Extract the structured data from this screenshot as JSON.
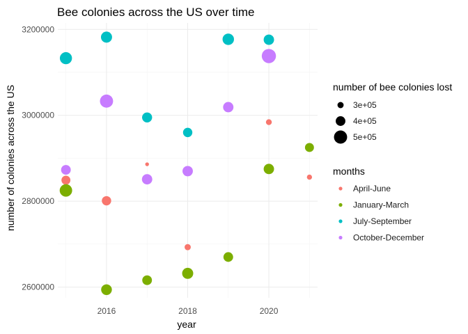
{
  "chart_data": {
    "type": "scatter",
    "title": "Bee colonies across the US over time",
    "xlabel": "year",
    "ylabel": "number of colonies across the US",
    "xlim": [
      2014.8,
      2021.2
    ],
    "ylim": [
      2575000,
      3215000
    ],
    "x_ticks": [
      2016,
      2018,
      2020
    ],
    "y_ticks": [
      2600000,
      2800000,
      3000000,
      3200000
    ],
    "x_tick_labels": [
      "2016",
      "2018",
      "2020"
    ],
    "y_tick_labels": [
      "2600000",
      "2800000",
      "3000000",
      "3200000"
    ],
    "grid": true,
    "legend_position": "right",
    "size_legend": {
      "title": "number of bee colonies lost",
      "values": [
        300000,
        400000,
        500000
      ],
      "labels": [
        "3e+05",
        "4e+05",
        "5e+05"
      ]
    },
    "color_legend": {
      "title": "months"
    },
    "series": [
      {
        "name": "April-June",
        "color": "#F8766D",
        "points": [
          {
            "x": 2015,
            "y": 2849000,
            "lost": 380000
          },
          {
            "x": 2016,
            "y": 2801000,
            "lost": 390000
          },
          {
            "x": 2017,
            "y": 2886000,
            "lost": 230000
          },
          {
            "x": 2018,
            "y": 2693000,
            "lost": 300000
          },
          {
            "x": 2020,
            "y": 2984000,
            "lost": 290000
          },
          {
            "x": 2021,
            "y": 2856000,
            "lost": 270000
          }
        ]
      },
      {
        "name": "January-March",
        "color": "#7CAE00",
        "points": [
          {
            "x": 2015,
            "y": 2825000,
            "lost": 480000
          },
          {
            "x": 2016,
            "y": 2594000,
            "lost": 430000
          },
          {
            "x": 2017,
            "y": 2616000,
            "lost": 400000
          },
          {
            "x": 2018,
            "y": 2632000,
            "lost": 440000
          },
          {
            "x": 2019,
            "y": 2670000,
            "lost": 400000
          },
          {
            "x": 2020,
            "y": 2875000,
            "lost": 420000
          },
          {
            "x": 2021,
            "y": 2925000,
            "lost": 380000
          }
        ]
      },
      {
        "name": "July-September",
        "color": "#00BFC4",
        "points": [
          {
            "x": 2015,
            "y": 3133000,
            "lost": 470000
          },
          {
            "x": 2016,
            "y": 3182000,
            "lost": 440000
          },
          {
            "x": 2017,
            "y": 2995000,
            "lost": 410000
          },
          {
            "x": 2018,
            "y": 2960000,
            "lost": 390000
          },
          {
            "x": 2019,
            "y": 3177000,
            "lost": 450000
          },
          {
            "x": 2020,
            "y": 3176000,
            "lost": 420000
          }
        ]
      },
      {
        "name": "October-December",
        "color": "#C77CFF",
        "points": [
          {
            "x": 2015,
            "y": 2873000,
            "lost": 400000
          },
          {
            "x": 2016,
            "y": 3033000,
            "lost": 500000
          },
          {
            "x": 2017,
            "y": 2851000,
            "lost": 420000
          },
          {
            "x": 2018,
            "y": 2870000,
            "lost": 420000
          },
          {
            "x": 2019,
            "y": 3019000,
            "lost": 420000
          },
          {
            "x": 2020,
            "y": 3138000,
            "lost": 530000
          }
        ]
      }
    ]
  }
}
